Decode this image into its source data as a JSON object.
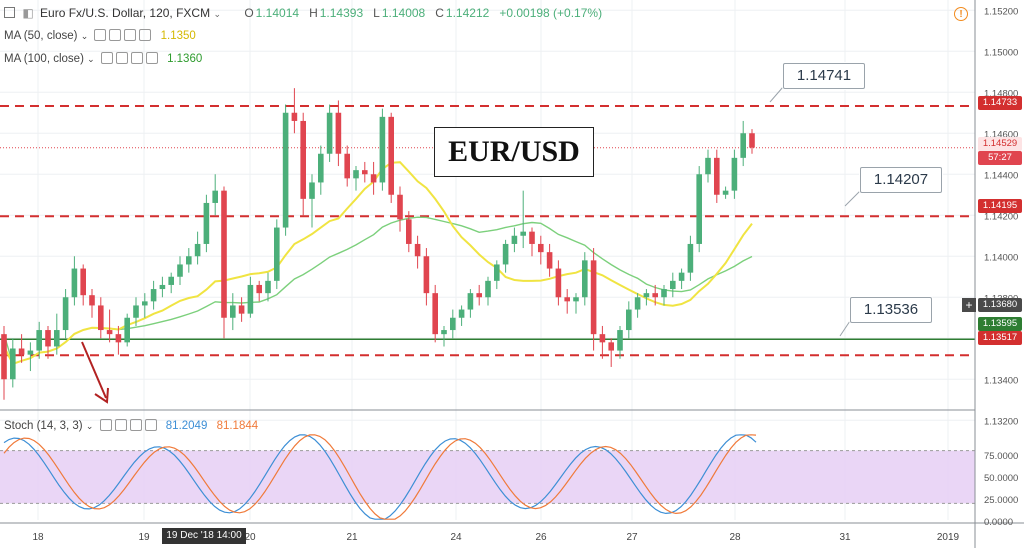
{
  "header": {
    "symbol": "Euro Fx/U.S. Dollar, 120, FXCM",
    "open_label": "O",
    "open": "1.14014",
    "high_label": "H",
    "high": "1.14393",
    "low_label": "L",
    "low": "1.14008",
    "close_label": "C",
    "close": "1.14212",
    "change": "+0.00198 (+0.17%)"
  },
  "indicators": {
    "ma50": {
      "label": "MA (50, close)",
      "value": "1.1350",
      "color": "#e8d400"
    },
    "ma100": {
      "label": "MA (100, close)",
      "value": "1.1360",
      "color": "#3cb83c"
    },
    "stoch": {
      "label": "Stoch (14, 3, 3)",
      "k": "81.2049",
      "d": "81.1844",
      "k_color": "#3d8fd6",
      "d_color": "#f07a3a"
    }
  },
  "annotations": {
    "title": "EUR/USD",
    "callouts": [
      "1.14741",
      "1.14207",
      "1.13536"
    ]
  },
  "price_axis": {
    "ticks": [
      "1.15200",
      "1.15000",
      "1.14800",
      "1.14600",
      "1.14400",
      "1.14200",
      "1.14000",
      "1.13800",
      "1.13600",
      "1.13400",
      "1.13200"
    ],
    "labels": {
      "line_top": "1.14733",
      "current": "1.14529",
      "countdown": "57:27",
      "line_mid": "1.14195",
      "crosshair": "1.13680",
      "green_line": "1.13595",
      "line_low": "1.13517"
    }
  },
  "stoch_axis": {
    "ticks": [
      "75.0000",
      "50.0000",
      "25.0000",
      "0.0000"
    ]
  },
  "time_axis": {
    "ticks": [
      "18",
      "19",
      "20",
      "21",
      "24",
      "26",
      "27",
      "28",
      "31",
      "2019"
    ],
    "crosshair_label": "19 Dec '18  14:00"
  },
  "colors": {
    "up": "#4caf7a",
    "down": "#e0454f",
    "ma50": "#f0e442",
    "ma100": "#7cd07c",
    "stoch_bg": "#e6cff5",
    "dashed": "#d32f2f",
    "green_line": "#2e7d32"
  },
  "chart_data": {
    "type": "candlestick",
    "ylim": [
      1.1325,
      1.1525
    ],
    "levels": [
      1.14733,
      1.14195,
      1.13517,
      1.13595
    ],
    "candles": [
      [
        1.1362,
        1.1366,
        1.133,
        1.134
      ],
      [
        1.134,
        1.136,
        1.1336,
        1.1355
      ],
      [
        1.1355,
        1.1362,
        1.1348,
        1.1352
      ],
      [
        1.1352,
        1.1358,
        1.1344,
        1.1354
      ],
      [
        1.1354,
        1.1368,
        1.135,
        1.1364
      ],
      [
        1.1364,
        1.1366,
        1.135,
        1.1356
      ],
      [
        1.1356,
        1.1372,
        1.1352,
        1.1364
      ],
      [
        1.1364,
        1.1384,
        1.136,
        1.138
      ],
      [
        1.138,
        1.14,
        1.1376,
        1.1394
      ],
      [
        1.1394,
        1.1396,
        1.1376,
        1.1381
      ],
      [
        1.1381,
        1.1384,
        1.137,
        1.1376
      ],
      [
        1.1376,
        1.138,
        1.136,
        1.1364
      ],
      [
        1.1364,
        1.1374,
        1.1358,
        1.1362
      ],
      [
        1.1362,
        1.1366,
        1.1352,
        1.1358
      ],
      [
        1.1358,
        1.1372,
        1.1356,
        1.137
      ],
      [
        1.137,
        1.138,
        1.1366,
        1.1376
      ],
      [
        1.1376,
        1.1382,
        1.137,
        1.1378
      ],
      [
        1.1378,
        1.1388,
        1.1374,
        1.1384
      ],
      [
        1.1384,
        1.139,
        1.138,
        1.1386
      ],
      [
        1.1386,
        1.1392,
        1.1382,
        1.139
      ],
      [
        1.139,
        1.14,
        1.1386,
        1.1396
      ],
      [
        1.1396,
        1.1404,
        1.1392,
        1.14
      ],
      [
        1.14,
        1.1412,
        1.1396,
        1.1406
      ],
      [
        1.1406,
        1.143,
        1.1402,
        1.1426
      ],
      [
        1.1426,
        1.144,
        1.142,
        1.1432
      ],
      [
        1.1432,
        1.1434,
        1.136,
        1.137
      ],
      [
        1.137,
        1.1382,
        1.1364,
        1.1376
      ],
      [
        1.1376,
        1.138,
        1.1368,
        1.1372
      ],
      [
        1.1372,
        1.139,
        1.137,
        1.1386
      ],
      [
        1.1386,
        1.1388,
        1.1378,
        1.1382
      ],
      [
        1.1382,
        1.1392,
        1.1378,
        1.1388
      ],
      [
        1.1388,
        1.1418,
        1.1384,
        1.1414
      ],
      [
        1.1414,
        1.1474,
        1.141,
        1.147
      ],
      [
        1.147,
        1.1482,
        1.146,
        1.1466
      ],
      [
        1.1466,
        1.147,
        1.142,
        1.1428
      ],
      [
        1.1428,
        1.144,
        1.1414,
        1.1436
      ],
      [
        1.1436,
        1.1454,
        1.143,
        1.145
      ],
      [
        1.145,
        1.1474,
        1.1446,
        1.147
      ],
      [
        1.147,
        1.1476,
        1.1444,
        1.145
      ],
      [
        1.145,
        1.1454,
        1.1434,
        1.1438
      ],
      [
        1.1438,
        1.1444,
        1.1432,
        1.1442
      ],
      [
        1.1442,
        1.1446,
        1.1436,
        1.144
      ],
      [
        1.144,
        1.1446,
        1.143,
        1.1436
      ],
      [
        1.1436,
        1.1472,
        1.1432,
        1.1468
      ],
      [
        1.1468,
        1.147,
        1.1426,
        1.143
      ],
      [
        1.143,
        1.1434,
        1.1412,
        1.1418
      ],
      [
        1.1418,
        1.1422,
        1.1402,
        1.1406
      ],
      [
        1.1406,
        1.141,
        1.1394,
        1.14
      ],
      [
        1.14,
        1.1404,
        1.1376,
        1.1382
      ],
      [
        1.1382,
        1.1386,
        1.1358,
        1.1362
      ],
      [
        1.1362,
        1.1366,
        1.1356,
        1.1364
      ],
      [
        1.1364,
        1.1374,
        1.136,
        1.137
      ],
      [
        1.137,
        1.1376,
        1.1366,
        1.1374
      ],
      [
        1.1374,
        1.1384,
        1.137,
        1.1382
      ],
      [
        1.1382,
        1.1386,
        1.1376,
        1.138
      ],
      [
        1.138,
        1.139,
        1.1376,
        1.1388
      ],
      [
        1.1388,
        1.1398,
        1.1384,
        1.1396
      ],
      [
        1.1396,
        1.1408,
        1.1392,
        1.1406
      ],
      [
        1.1406,
        1.1414,
        1.1402,
        1.141
      ],
      [
        1.141,
        1.1432,
        1.1404,
        1.1412
      ],
      [
        1.1412,
        1.1414,
        1.14,
        1.1406
      ],
      [
        1.1406,
        1.141,
        1.1396,
        1.1402
      ],
      [
        1.1402,
        1.1406,
        1.139,
        1.1394
      ],
      [
        1.1394,
        1.1398,
        1.1376,
        1.138
      ],
      [
        1.138,
        1.1384,
        1.1372,
        1.1378
      ],
      [
        1.1378,
        1.1382,
        1.1372,
        1.138
      ],
      [
        1.138,
        1.1402,
        1.1376,
        1.1398
      ],
      [
        1.1398,
        1.1404,
        1.1354,
        1.1362
      ],
      [
        1.1362,
        1.1366,
        1.135,
        1.1358
      ],
      [
        1.1358,
        1.136,
        1.1346,
        1.1354
      ],
      [
        1.1354,
        1.1366,
        1.135,
        1.1364
      ],
      [
        1.1364,
        1.1378,
        1.136,
        1.1374
      ],
      [
        1.1374,
        1.1382,
        1.137,
        1.138
      ],
      [
        1.138,
        1.1384,
        1.1376,
        1.1382
      ],
      [
        1.1382,
        1.1386,
        1.1376,
        1.138
      ],
      [
        1.138,
        1.1386,
        1.1376,
        1.1384
      ],
      [
        1.1384,
        1.1392,
        1.138,
        1.1388
      ],
      [
        1.1388,
        1.1394,
        1.1384,
        1.1392
      ],
      [
        1.1392,
        1.141,
        1.1388,
        1.1406
      ],
      [
        1.1406,
        1.1444,
        1.1402,
        1.144
      ],
      [
        1.144,
        1.1452,
        1.1436,
        1.1448
      ],
      [
        1.1448,
        1.1452,
        1.1426,
        1.143
      ],
      [
        1.143,
        1.1434,
        1.1428,
        1.1432
      ],
      [
        1.1432,
        1.1452,
        1.1428,
        1.1448
      ],
      [
        1.1448,
        1.1466,
        1.1444,
        1.146
      ],
      [
        1.146,
        1.1462,
        1.145,
        1.1453
      ]
    ]
  }
}
